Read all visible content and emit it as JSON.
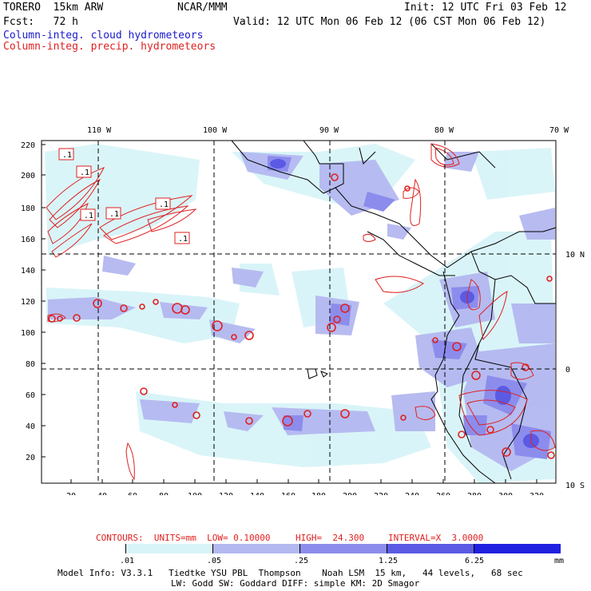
{
  "header": {
    "model": "TORERO  15km ARW",
    "org": "NCAR/MMM",
    "init": "Init: 12 UTC Fri 03 Feb 12",
    "fcst": "Fcst:   72 h",
    "valid": "Valid: 12 UTC Mon 06 Feb 12 (06 CST Mon 06 Feb 12)",
    "field1": "Column-integ. cloud hydrometeors",
    "field2": "Column-integ. precip. hydrometeors"
  },
  "map": {
    "lon_labels": [
      "110 W",
      "100 W",
      "90 W",
      "80 W",
      "70 W"
    ],
    "lat_labels": [
      "10 N",
      "0",
      "10 S"
    ],
    "y_ticks": [
      "220",
      "200",
      "180",
      "160",
      "140",
      "120",
      "100",
      "80",
      "60",
      "40",
      "20"
    ],
    "x_ticks": [
      "20",
      "40",
      "60",
      "80",
      "100",
      "120",
      "140",
      "160",
      "180",
      "200",
      "220",
      "240",
      "260",
      "280",
      "300",
      "320"
    ],
    "contour_label": ".1"
  },
  "contour_info": {
    "units": "CONTOURS:  UNITS=mm  LOW= 0.10000",
    "high": "HIGH=  24.300",
    "interval": "INTERVAL=X  3.0000"
  },
  "colorbar": {
    "labels": [
      ".01",
      ".05",
      ".25",
      "1.25",
      "6.25"
    ],
    "unit": "mm",
    "colors": [
      "#ffffff",
      "#d8f4f8",
      "#b4b8f0",
      "#8c8cec",
      "#5a5ae4",
      "#2020e0"
    ]
  },
  "footer": {
    "line1": "Model Info: V3.3.1   Tiedtke YSU PBL  Thompson    Noah LSM  15 km,   44 levels,   68 sec",
    "line2": "LW: Godd SW: Goddard DIFF: simple KM: 2D Smagor"
  },
  "colors": {
    "cloud": "#1a1acc",
    "precip": "#e02020"
  }
}
